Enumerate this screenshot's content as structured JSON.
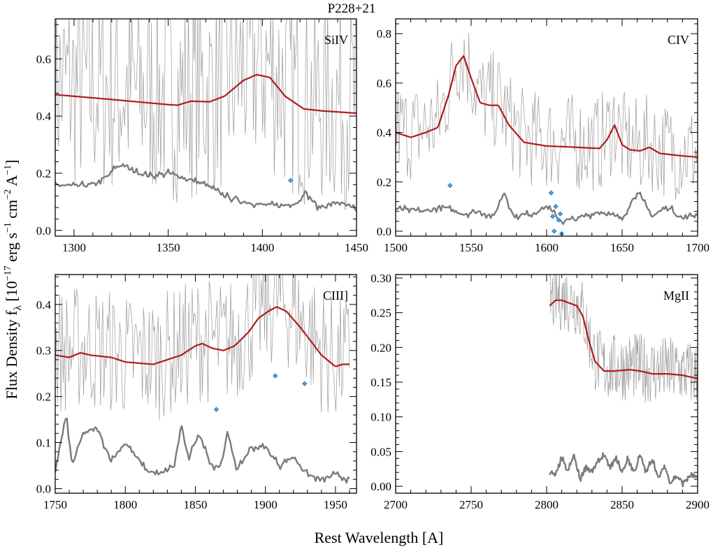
{
  "figure": {
    "title": "P228+21",
    "xlabel": "Rest Wavelength [A]",
    "ylabel": "Flux Density f",
    "ylabel_sub": "λ",
    "ylabel_unit": "[10",
    "ylabel_exp1": "−17",
    "ylabel_mid1": " erg s",
    "ylabel_exp2": "−1",
    "ylabel_mid2": " cm",
    "ylabel_exp3": "−2",
    "ylabel_mid3": " A",
    "ylabel_exp4": "−1",
    "ylabel_end": "]"
  },
  "colors": {
    "spectrum": "#9a9a9a",
    "noise": "#7a7a7a",
    "model": "#b01c1c",
    "absorber": "#4fa6e0"
  },
  "chart_data": [
    {
      "type": "line",
      "line_label": "SiIV",
      "xlim": [
        1290,
        1450
      ],
      "ylim": [
        -0.02,
        0.74
      ],
      "xticks": [
        1300,
        1350,
        1400,
        1450
      ],
      "yticks": [
        0.0,
        0.2,
        0.4,
        0.6
      ],
      "ytick_labels": [
        "0.0",
        "0.2",
        "0.4",
        "0.6"
      ],
      "series": [
        {
          "role": "model",
          "x": [
            1290,
            1320,
            1350,
            1355,
            1362,
            1372,
            1380,
            1390,
            1397,
            1404,
            1412,
            1422,
            1432,
            1450
          ],
          "y": [
            0.475,
            0.458,
            0.44,
            0.438,
            0.452,
            0.45,
            0.47,
            0.525,
            0.545,
            0.535,
            0.47,
            0.425,
            0.418,
            0.41
          ]
        },
        {
          "role": "noise",
          "x": [
            1290,
            1300,
            1310,
            1318,
            1322,
            1326,
            1330,
            1340,
            1350,
            1360,
            1370,
            1380,
            1390,
            1400,
            1410,
            1420,
            1422,
            1430,
            1440,
            1450
          ],
          "y": [
            0.16,
            0.155,
            0.16,
            0.19,
            0.22,
            0.23,
            0.21,
            0.19,
            0.2,
            0.18,
            0.16,
            0.12,
            0.1,
            0.09,
            0.085,
            0.1,
            0.14,
            0.08,
            0.1,
            0.07
          ]
        },
        {
          "role": "spectrum",
          "x_range": [
            1290,
            1450
          ],
          "noise_level": 0.38
        }
      ],
      "absorbers": [
        {
          "x": 1415,
          "y": 0.175
        }
      ]
    },
    {
      "type": "line",
      "line_label": "CIV",
      "xlim": [
        1500,
        1700
      ],
      "ylim": [
        -0.02,
        0.86
      ],
      "xticks": [
        1500,
        1550,
        1600,
        1650,
        1700
      ],
      "yticks": [
        0.0,
        0.2,
        0.4,
        0.6,
        0.8
      ],
      "ytick_labels": [
        "0.0",
        "0.2",
        "0.4",
        "0.6",
        "0.8"
      ],
      "series": [
        {
          "role": "model",
          "x": [
            1500,
            1510,
            1520,
            1528,
            1535,
            1540,
            1545,
            1550,
            1556,
            1562,
            1568,
            1575,
            1585,
            1600,
            1620,
            1635,
            1640,
            1645,
            1650,
            1655,
            1662,
            1668,
            1675,
            1690,
            1700
          ],
          "y": [
            0.4,
            0.38,
            0.4,
            0.42,
            0.55,
            0.67,
            0.71,
            0.62,
            0.52,
            0.51,
            0.51,
            0.43,
            0.36,
            0.345,
            0.34,
            0.335,
            0.37,
            0.43,
            0.35,
            0.33,
            0.325,
            0.34,
            0.315,
            0.305,
            0.3
          ]
        },
        {
          "role": "noise",
          "x": [
            1500,
            1520,
            1530,
            1545,
            1555,
            1565,
            1572,
            1578,
            1590,
            1600,
            1610,
            1620,
            1635,
            1650,
            1660,
            1670,
            1680,
            1690,
            1700
          ],
          "y": [
            0.09,
            0.08,
            0.1,
            0.07,
            0.08,
            0.06,
            0.16,
            0.06,
            0.07,
            0.1,
            0.04,
            0.05,
            0.08,
            0.05,
            0.16,
            0.06,
            0.1,
            0.05,
            0.07
          ]
        },
        {
          "role": "spectrum",
          "x_range": [
            1500,
            1700
          ],
          "noise_level": 0.2
        }
      ],
      "absorbers": [
        {
          "x": 1536,
          "y": 0.185
        },
        {
          "x": 1603,
          "y": 0.155
        },
        {
          "x": 1604,
          "y": 0.06
        },
        {
          "x": 1606,
          "y": 0.1
        },
        {
          "x": 1608,
          "y": 0.045
        },
        {
          "x": 1609,
          "y": 0.07
        },
        {
          "x": 1605,
          "y": 0.0
        },
        {
          "x": 1610,
          "y": -0.01
        }
      ]
    },
    {
      "type": "line",
      "line_label": "CIII]",
      "xlim": [
        1750,
        1965
      ],
      "ylim": [
        -0.01,
        0.465
      ],
      "xticks": [
        1750,
        1800,
        1850,
        1900,
        1950
      ],
      "yticks": [
        0.0,
        0.1,
        0.2,
        0.3,
        0.4
      ],
      "ytick_labels": [
        "0.0",
        "0.1",
        "0.2",
        "0.3",
        "0.4"
      ],
      "series": [
        {
          "role": "model",
          "x": [
            1750,
            1760,
            1768,
            1775,
            1790,
            1800,
            1820,
            1840,
            1850,
            1855,
            1862,
            1870,
            1878,
            1888,
            1895,
            1902,
            1908,
            1915,
            1925,
            1940,
            1950,
            1955,
            1960
          ],
          "y": [
            0.29,
            0.285,
            0.295,
            0.29,
            0.285,
            0.275,
            0.27,
            0.29,
            0.31,
            0.315,
            0.305,
            0.3,
            0.31,
            0.34,
            0.37,
            0.385,
            0.395,
            0.385,
            0.35,
            0.29,
            0.265,
            0.27,
            0.27
          ]
        },
        {
          "role": "noise",
          "x": [
            1750,
            1758,
            1762,
            1770,
            1780,
            1790,
            1800,
            1815,
            1825,
            1835,
            1840,
            1845,
            1852,
            1862,
            1868,
            1873,
            1880,
            1890,
            1900,
            1910,
            1920,
            1930,
            1940,
            1950,
            1960
          ],
          "y": [
            0.04,
            0.16,
            0.05,
            0.12,
            0.13,
            0.06,
            0.1,
            0.04,
            0.03,
            0.05,
            0.14,
            0.06,
            0.12,
            0.05,
            0.05,
            0.12,
            0.04,
            0.09,
            0.09,
            0.05,
            0.07,
            0.03,
            0.02,
            0.03,
            0.02
          ]
        },
        {
          "role": "spectrum",
          "x_range": [
            1750,
            1960
          ],
          "noise_level": 0.14
        }
      ],
      "absorbers": [
        {
          "x": 1865,
          "y": 0.172
        },
        {
          "x": 1907,
          "y": 0.245
        },
        {
          "x": 1928,
          "y": 0.228
        }
      ]
    },
    {
      "type": "line",
      "line_label": "MgII",
      "xlim": [
        2700,
        2900
      ],
      "ylim": [
        -0.01,
        0.305
      ],
      "xticks": [
        2700,
        2750,
        2800,
        2850,
        2900
      ],
      "yticks": [
        0.0,
        0.05,
        0.1,
        0.15,
        0.2,
        0.25,
        0.3
      ],
      "ytick_labels": [
        "0.00",
        "0.05",
        "0.10",
        "0.15",
        "0.20",
        "0.25",
        "0.30"
      ],
      "series": [
        {
          "role": "model",
          "x": [
            2802,
            2806,
            2810,
            2815,
            2820,
            2824,
            2828,
            2832,
            2838,
            2845,
            2855,
            2862,
            2870,
            2880,
            2890,
            2900
          ],
          "y": [
            0.26,
            0.268,
            0.268,
            0.264,
            0.26,
            0.245,
            0.21,
            0.18,
            0.166,
            0.166,
            0.168,
            0.166,
            0.162,
            0.162,
            0.16,
            0.155
          ]
        },
        {
          "role": "noise",
          "x": [
            2802,
            2806,
            2810,
            2814,
            2818,
            2822,
            2826,
            2830,
            2834,
            2838,
            2842,
            2846,
            2850,
            2854,
            2858,
            2862,
            2866,
            2870,
            2874,
            2878,
            2882,
            2886,
            2890,
            2895,
            2900
          ],
          "y": [
            0.02,
            0.015,
            0.04,
            0.02,
            0.045,
            0.01,
            0.03,
            0.02,
            0.035,
            0.045,
            0.025,
            0.04,
            0.02,
            0.04,
            0.02,
            0.045,
            0.02,
            0.04,
            0.01,
            0.03,
            0.005,
            0.015,
            0.005,
            0.015,
            0.012
          ]
        },
        {
          "role": "spectrum",
          "x_range": [
            2802,
            2900
          ],
          "noise_level": 0.05
        }
      ],
      "absorbers": []
    }
  ]
}
